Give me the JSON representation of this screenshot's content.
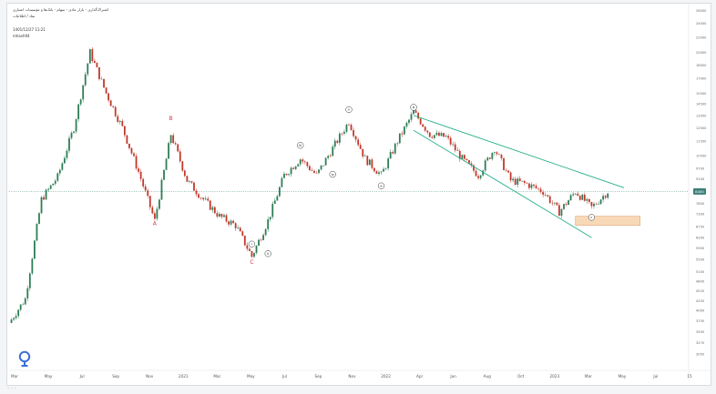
{
  "header": {
    "title_line": "اشتراک‌گذاری - بازار عادی - سهام - بانک‌ها و مؤسسات اعتباری",
    "subtitle_line": "نماد / اطلاعات",
    "date_line": "1401/12/27  11:21",
    "user_line": "mhash94"
  },
  "colors": {
    "up": "#2e7d57",
    "down": "#c0392b",
    "channel": "#26b08a",
    "price_line": "#5a9e98",
    "price_badge": "#3d7f79",
    "zone_fill": "#f8d9b7",
    "zone_stroke": "#e0a876",
    "label_red": "#d6324a"
  },
  "chart_data": {
    "type": "candlestick",
    "x_axis": {
      "tick_labels": [
        "Mar",
        "May",
        "Jul",
        "Sep",
        "Nov",
        "2021",
        "Mar",
        "May",
        "Jul",
        "Sep",
        "Nov",
        "2022",
        "Apr",
        "Jun",
        "Aug",
        "Oct",
        "2023",
        "Mar",
        "May",
        "Jul",
        "15"
      ]
    },
    "y_axis": {
      "scale": "log",
      "range": [
        2800,
        26500
      ],
      "tick_labels": [
        "26000",
        "24000",
        "22000",
        "20000",
        "18500",
        "17000",
        "15500",
        "14500",
        "13500",
        "12500",
        "11500",
        "10500",
        "9700",
        "9100",
        "8400",
        "7800",
        "7300",
        "6750",
        "6300",
        "5900",
        "5500",
        "5100",
        "4800",
        "4520",
        "4250",
        "4000",
        "3750",
        "3500",
        "3270",
        "3050"
      ],
      "current_price": "8400"
    },
    "price_path": [
      {
        "x": "2020-02",
        "y": 3700
      },
      {
        "x": "2020-03",
        "y": 4300
      },
      {
        "x": "2020-04",
        "y": 8000
      },
      {
        "x": "2020-05",
        "y": 9200
      },
      {
        "x": "2020-06",
        "y": 12500
      },
      {
        "x": "2020-07",
        "y": 20000
      },
      {
        "x": "2020-08",
        "y": 15500
      },
      {
        "x": "2020-09",
        "y": 12500
      },
      {
        "x": "2020-10",
        "y": 9500
      },
      {
        "x": "2020-11",
        "y": 7000
      },
      {
        "x": "2020-12",
        "y": 12000
      },
      {
        "x": "2021-01",
        "y": 9000
      },
      {
        "x": "2021-02",
        "y": 8000
      },
      {
        "x": "2021-03",
        "y": 7200
      },
      {
        "x": "2021-04",
        "y": 6800
      },
      {
        "x": "2021-05",
        "y": 5600
      },
      {
        "x": "2021-06",
        "y": 7000
      },
      {
        "x": "2021-07",
        "y": 9300
      },
      {
        "x": "2021-08",
        "y": 10300
      },
      {
        "x": "2021-09",
        "y": 9300
      },
      {
        "x": "2021-10",
        "y": 11000
      },
      {
        "x": "2021-11",
        "y": 13000
      },
      {
        "x": "2021-12",
        "y": 10300
      },
      {
        "x": "2022-01",
        "y": 9300
      },
      {
        "x": "2022-02",
        "y": 11500
      },
      {
        "x": "2022-03",
        "y": 13800
      },
      {
        "x": "2022-04",
        "y": 12000
      },
      {
        "x": "2022-05",
        "y": 11800
      },
      {
        "x": "2022-06",
        "y": 10300
      },
      {
        "x": "2022-07",
        "y": 9300
      },
      {
        "x": "2022-08",
        "y": 11000
      },
      {
        "x": "2022-09",
        "y": 9000
      },
      {
        "x": "2022-10",
        "y": 8800
      },
      {
        "x": "2022-11",
        "y": 8400
      },
      {
        "x": "2022-12",
        "y": 7400
      },
      {
        "x": "2023-01",
        "y": 8400
      },
      {
        "x": "2023-02",
        "y": 7600
      },
      {
        "x": "2023-03",
        "y": 8400
      }
    ],
    "wave_labels": [
      {
        "text": "A",
        "style": "plain",
        "x": "2020-11",
        "y": 6800
      },
      {
        "text": "B",
        "style": "plain",
        "x": "2020-12",
        "y": 13100
      },
      {
        "text": "C",
        "style": "plain",
        "x": "2021-05",
        "y": 5350
      },
      {
        "text": "i",
        "style": "circled",
        "x": "2021-05",
        "y": 6050
      },
      {
        "text": "ii",
        "style": "circled",
        "x": "2021-06",
        "y": 5700
      },
      {
        "text": "iii",
        "style": "circled",
        "x": "2021-08",
        "y": 11200
      },
      {
        "text": "iv",
        "style": "circled",
        "x": "2021-10",
        "y": 9350
      },
      {
        "text": "v",
        "style": "circled",
        "x": "2021-11",
        "y": 14000
      },
      {
        "text": "a",
        "style": "circled",
        "x": "2022-01",
        "y": 8700
      },
      {
        "text": "b",
        "style": "circled",
        "x": "2022-03",
        "y": 14200
      },
      {
        "text": "c",
        "style": "circled",
        "x": "2023-02",
        "y": 7150
      }
    ],
    "channel_lines": [
      {
        "from": {
          "x": "2022-03",
          "y": 13500
        },
        "to": {
          "x": "2023-04",
          "y": 8600
        }
      },
      {
        "from": {
          "x": "2022-03",
          "y": 12300
        },
        "to": {
          "x": "2023-02",
          "y": 6300
        }
      }
    ],
    "target_zone": {
      "x_from": "2023-01",
      "x_to": "2023-05",
      "y_from": 6800,
      "y_to": 7200
    }
  }
}
